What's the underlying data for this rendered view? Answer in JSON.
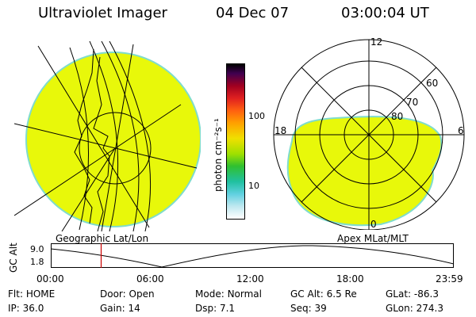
{
  "header": {
    "title": "Ultraviolet Imager",
    "date": "04 Dec 07",
    "time": "03:00:04 UT"
  },
  "colorbar": {
    "label": "photon cm⁻²s⁻¹",
    "ticks": [
      "100",
      "10"
    ]
  },
  "left_panel": {
    "caption": "Geographic Lat/Lon",
    "fill": "#e8f80a"
  },
  "right_panel": {
    "caption": "Apex MLat/MLT",
    "mlt_labels": {
      "top": "12",
      "left": "18",
      "right": "6",
      "bottom": "0"
    },
    "lat_labels": [
      "60",
      "70",
      "80"
    ],
    "fill": "#e8f80a"
  },
  "timeline": {
    "ylabel": "GC Alt",
    "yticks": [
      "9.0",
      "1.8"
    ],
    "xticks": [
      "00:00",
      "06:00",
      "12:00",
      "18:00",
      "23:59"
    ],
    "marker_fraction": 0.125
  },
  "info": {
    "row1": [
      {
        "key": "Flt:",
        "value": "HOME"
      },
      {
        "key": "Door:",
        "value": "Open"
      },
      {
        "key": "Mode:",
        "value": "Normal"
      },
      {
        "key": "GC Alt:",
        "value": "6.5 Re"
      },
      {
        "key": "GLat:",
        "value": "-86.3"
      }
    ],
    "row2": [
      {
        "key": "IP:",
        "value": "36.0"
      },
      {
        "key": "Gain:",
        "value": "14"
      },
      {
        "key": "Dsp:",
        "value": "7.1"
      },
      {
        "key": "Seq:",
        "value": "39"
      },
      {
        "key": "GLon:",
        "value": "274.3"
      }
    ]
  },
  "colors": {
    "aurora_fill": "#e8f80a",
    "aurora_edge": "#7fdccc",
    "marker": "#cc0000"
  }
}
